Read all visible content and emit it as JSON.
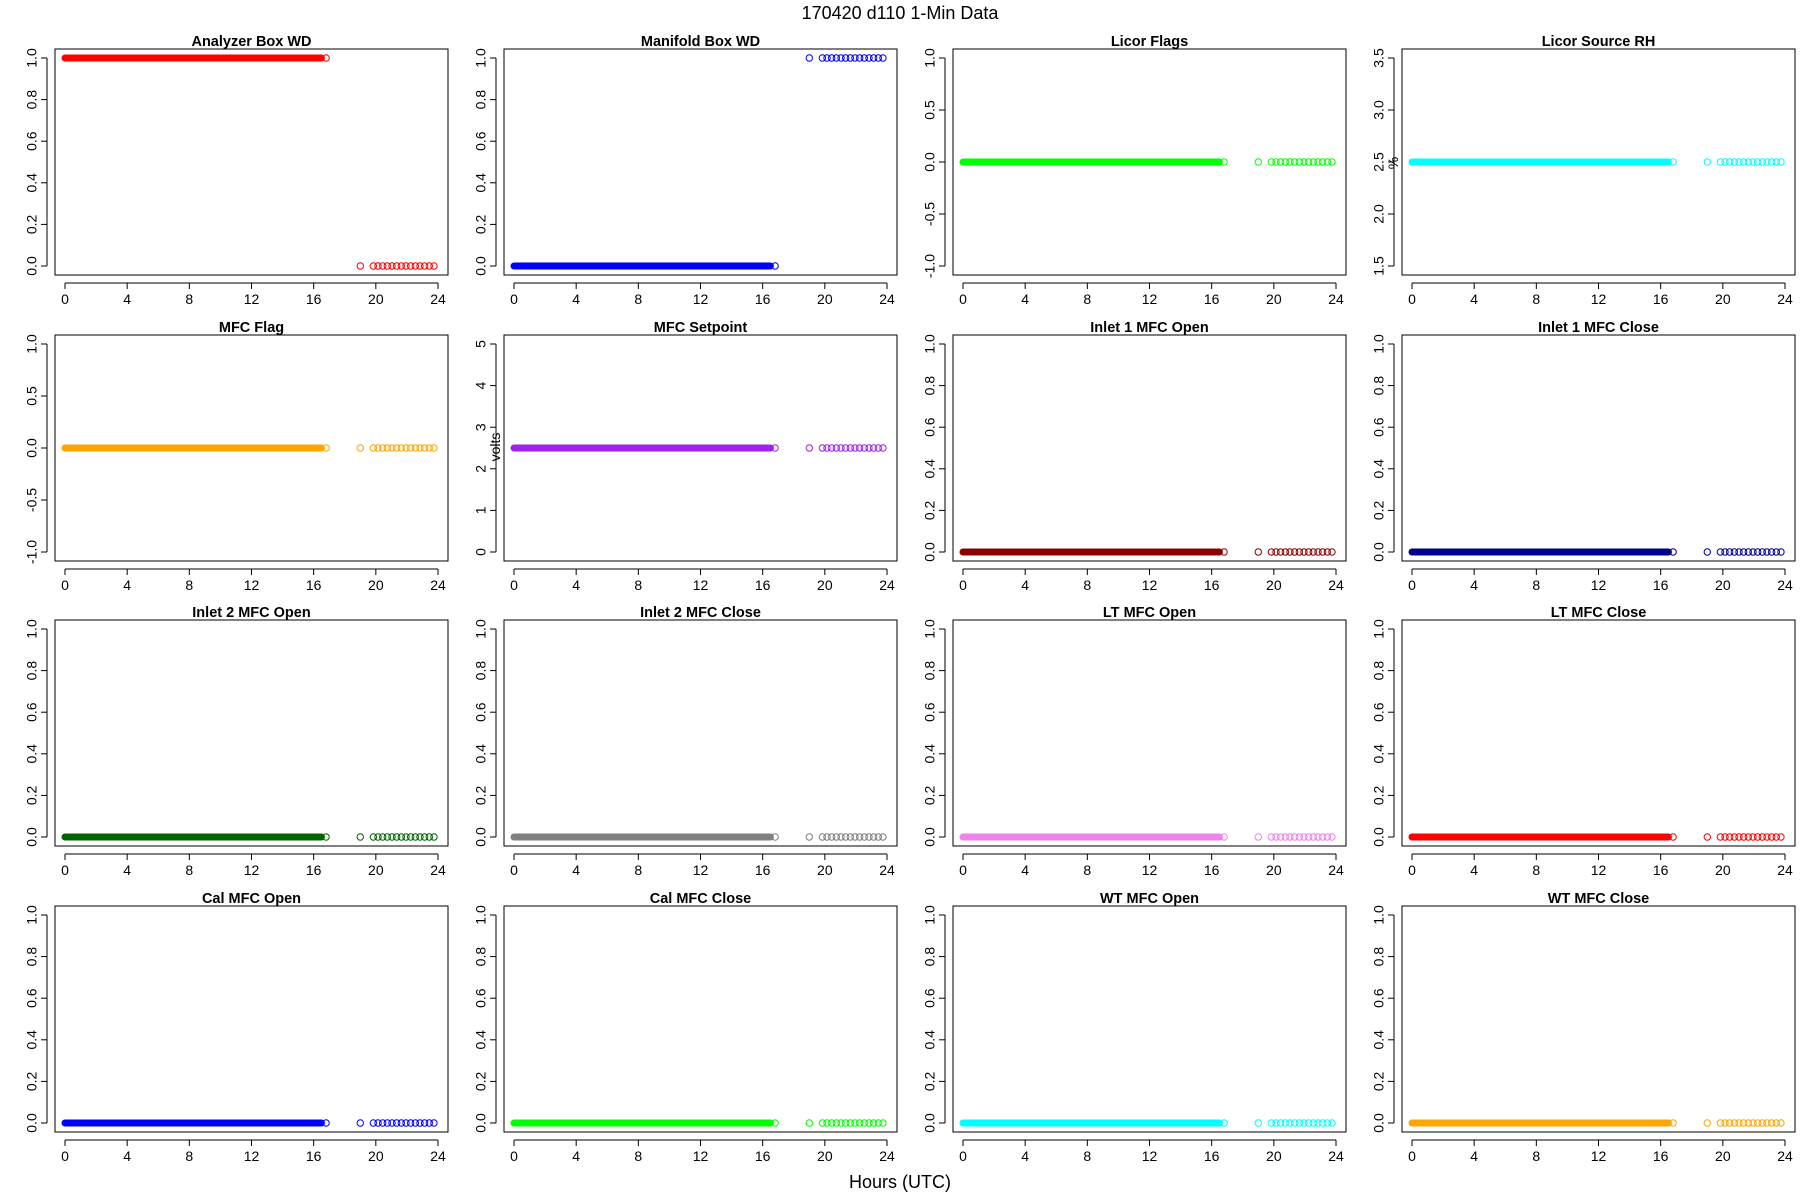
{
  "figure": {
    "title": "170420   d110   1-Min Data",
    "xlabel": "Hours (UTC)"
  },
  "chart_data": [
    {
      "type": "scatter",
      "title": "Analyzer Box WD",
      "ylabel": "",
      "color": "#ff0000",
      "xlim": [
        0,
        24
      ],
      "ylim": [
        0,
        1
      ],
      "xticks": [
        0,
        4,
        8,
        12,
        16,
        20,
        24
      ],
      "yticks": [
        "0.0",
        "0.2",
        "0.4",
        "0.6",
        "0.8",
        "1.0"
      ],
      "yticks_values": [
        0,
        0.2,
        0.4,
        0.6,
        0.8,
        1.0
      ],
      "segments": [
        {
          "x_start": 0,
          "x_end": 16.5,
          "y": 1.0
        },
        {
          "x_start": 19.0,
          "x_end": 24.0,
          "y": 0.0
        }
      ],
      "last_point": {
        "x": 16.8,
        "y": 1.0
      }
    },
    {
      "type": "scatter",
      "title": "Manifold Box WD",
      "ylabel": "",
      "color": "#0000ff",
      "xlim": [
        0,
        24
      ],
      "ylim": [
        0,
        1
      ],
      "xticks": [
        0,
        4,
        8,
        12,
        16,
        20,
        24
      ],
      "yticks": [
        "0.0",
        "0.2",
        "0.4",
        "0.6",
        "0.8",
        "1.0"
      ],
      "yticks_values": [
        0,
        0.2,
        0.4,
        0.6,
        0.8,
        1.0
      ],
      "segments": [
        {
          "x_start": 0,
          "x_end": 16.5,
          "y": 0.0
        },
        {
          "x_start": 19.0,
          "x_end": 24.0,
          "y": 1.0
        }
      ],
      "last_point": {
        "x": 16.8,
        "y": 0.0
      }
    },
    {
      "type": "scatter",
      "title": "Licor Flags",
      "ylabel": "",
      "color": "#00ff00",
      "xlim": [
        0,
        24
      ],
      "ylim": [
        -1,
        1
      ],
      "xticks": [
        0,
        4,
        8,
        12,
        16,
        20,
        24
      ],
      "yticks": [
        "-1.0",
        "-0.5",
        "0.0",
        "0.5",
        "1.0"
      ],
      "yticks_values": [
        -1,
        -0.5,
        0,
        0.5,
        1.0
      ],
      "segments": [
        {
          "x_start": 0,
          "x_end": 16.5,
          "y": 0.0
        },
        {
          "x_start": 19.0,
          "x_end": 24.0,
          "y": 0.0
        }
      ],
      "last_point": {
        "x": 16.8,
        "y": 0.0
      }
    },
    {
      "type": "scatter",
      "title": "Licor Source RH",
      "ylabel": "%",
      "color": "#00ffff",
      "xlim": [
        0,
        24
      ],
      "ylim": [
        1.5,
        3.5
      ],
      "xticks": [
        0,
        4,
        8,
        12,
        16,
        20,
        24
      ],
      "yticks": [
        "1.5",
        "2.0",
        "2.5",
        "3.0",
        "3.5"
      ],
      "yticks_values": [
        1.5,
        2.0,
        2.5,
        3.0,
        3.5
      ],
      "segments": [
        {
          "x_start": 0,
          "x_end": 16.5,
          "y": 2.5
        },
        {
          "x_start": 19.0,
          "x_end": 24.0,
          "y": 2.5
        }
      ],
      "last_point": {
        "x": 16.8,
        "y": 2.5
      }
    },
    {
      "type": "scatter",
      "title": "MFC Flag",
      "ylabel": "",
      "color": "#ffa500",
      "xlim": [
        0,
        24
      ],
      "ylim": [
        -1,
        1
      ],
      "xticks": [
        0,
        4,
        8,
        12,
        16,
        20,
        24
      ],
      "yticks": [
        "-1.0",
        "-0.5",
        "0.0",
        "0.5",
        "1.0"
      ],
      "yticks_values": [
        -1,
        -0.5,
        0,
        0.5,
        1.0
      ],
      "segments": [
        {
          "x_start": 0,
          "x_end": 16.5,
          "y": 0.0
        },
        {
          "x_start": 19.0,
          "x_end": 24.0,
          "y": 0.0
        }
      ],
      "last_point": {
        "x": 16.8,
        "y": 0.0
      }
    },
    {
      "type": "scatter",
      "title": "MFC Setpoint",
      "ylabel": "volts",
      "color": "#a020f0",
      "xlim": [
        0,
        24
      ],
      "ylim": [
        0,
        5
      ],
      "xticks": [
        0,
        4,
        8,
        12,
        16,
        20,
        24
      ],
      "yticks": [
        "0",
        "1",
        "2",
        "3",
        "4",
        "5"
      ],
      "yticks_values": [
        0,
        1,
        2,
        3,
        4,
        5
      ],
      "segments": [
        {
          "x_start": 0,
          "x_end": 16.5,
          "y": 2.5
        },
        {
          "x_start": 19.0,
          "x_end": 24.0,
          "y": 2.5
        }
      ],
      "last_point": {
        "x": 16.8,
        "y": 2.5
      }
    },
    {
      "type": "scatter",
      "title": "Inlet 1 MFC Open",
      "ylabel": "",
      "color": "#8b0000",
      "xlim": [
        0,
        24
      ],
      "ylim": [
        0,
        1
      ],
      "xticks": [
        0,
        4,
        8,
        12,
        16,
        20,
        24
      ],
      "yticks": [
        "0.0",
        "0.2",
        "0.4",
        "0.6",
        "0.8",
        "1.0"
      ],
      "yticks_values": [
        0,
        0.2,
        0.4,
        0.6,
        0.8,
        1.0
      ],
      "segments": [
        {
          "x_start": 0,
          "x_end": 16.5,
          "y": 0.0
        },
        {
          "x_start": 19.0,
          "x_end": 24.0,
          "y": 0.0
        }
      ],
      "last_point": {
        "x": 16.8,
        "y": 0.0
      }
    },
    {
      "type": "scatter",
      "title": "Inlet 1 MFC Close",
      "ylabel": "",
      "color": "#00008b",
      "xlim": [
        0,
        24
      ],
      "ylim": [
        0,
        1
      ],
      "xticks": [
        0,
        4,
        8,
        12,
        16,
        20,
        24
      ],
      "yticks": [
        "0.0",
        "0.2",
        "0.4",
        "0.6",
        "0.8",
        "1.0"
      ],
      "yticks_values": [
        0,
        0.2,
        0.4,
        0.6,
        0.8,
        1.0
      ],
      "segments": [
        {
          "x_start": 0,
          "x_end": 16.5,
          "y": 0.0
        },
        {
          "x_start": 19.0,
          "x_end": 24.0,
          "y": 0.0
        }
      ],
      "last_point": {
        "x": 16.8,
        "y": 0.0
      }
    },
    {
      "type": "scatter",
      "title": "Inlet 2 MFC Open",
      "ylabel": "",
      "color": "#006400",
      "xlim": [
        0,
        24
      ],
      "ylim": [
        0,
        1
      ],
      "xticks": [
        0,
        4,
        8,
        12,
        16,
        20,
        24
      ],
      "yticks": [
        "0.0",
        "0.2",
        "0.4",
        "0.6",
        "0.8",
        "1.0"
      ],
      "yticks_values": [
        0,
        0.2,
        0.4,
        0.6,
        0.8,
        1.0
      ],
      "segments": [
        {
          "x_start": 0,
          "x_end": 16.5,
          "y": 0.0
        },
        {
          "x_start": 19.0,
          "x_end": 24.0,
          "y": 0.0
        }
      ],
      "last_point": {
        "x": 16.8,
        "y": 0.0
      }
    },
    {
      "type": "scatter",
      "title": "Inlet 2 MFC Close",
      "ylabel": "",
      "color": "#808080",
      "xlim": [
        0,
        24
      ],
      "ylim": [
        0,
        1
      ],
      "xticks": [
        0,
        4,
        8,
        12,
        16,
        20,
        24
      ],
      "yticks": [
        "0.0",
        "0.2",
        "0.4",
        "0.6",
        "0.8",
        "1.0"
      ],
      "yticks_values": [
        0,
        0.2,
        0.4,
        0.6,
        0.8,
        1.0
      ],
      "segments": [
        {
          "x_start": 0,
          "x_end": 16.5,
          "y": 0.0
        },
        {
          "x_start": 19.0,
          "x_end": 24.0,
          "y": 0.0
        }
      ],
      "last_point": {
        "x": 16.8,
        "y": 0.0
      }
    },
    {
      "type": "scatter",
      "title": "LT MFC Open",
      "ylabel": "",
      "color": "#ee82ee",
      "xlim": [
        0,
        24
      ],
      "ylim": [
        0,
        1
      ],
      "xticks": [
        0,
        4,
        8,
        12,
        16,
        20,
        24
      ],
      "yticks": [
        "0.0",
        "0.2",
        "0.4",
        "0.6",
        "0.8",
        "1.0"
      ],
      "yticks_values": [
        0,
        0.2,
        0.4,
        0.6,
        0.8,
        1.0
      ],
      "segments": [
        {
          "x_start": 0,
          "x_end": 16.5,
          "y": 0.0
        },
        {
          "x_start": 19.0,
          "x_end": 24.0,
          "y": 0.0
        }
      ],
      "last_point": {
        "x": 16.8,
        "y": 0.0
      }
    },
    {
      "type": "scatter",
      "title": "LT MFC Close",
      "ylabel": "",
      "color": "#ff0000",
      "xlim": [
        0,
        24
      ],
      "ylim": [
        0,
        1
      ],
      "xticks": [
        0,
        4,
        8,
        12,
        16,
        20,
        24
      ],
      "yticks": [
        "0.0",
        "0.2",
        "0.4",
        "0.6",
        "0.8",
        "1.0"
      ],
      "yticks_values": [
        0,
        0.2,
        0.4,
        0.6,
        0.8,
        1.0
      ],
      "segments": [
        {
          "x_start": 0,
          "x_end": 16.5,
          "y": 0.0
        },
        {
          "x_start": 19.0,
          "x_end": 24.0,
          "y": 0.0
        }
      ],
      "last_point": {
        "x": 16.8,
        "y": 0.0
      }
    },
    {
      "type": "scatter",
      "title": "Cal MFC Open",
      "ylabel": "",
      "color": "#0000ff",
      "xlim": [
        0,
        24
      ],
      "ylim": [
        0,
        1
      ],
      "xticks": [
        0,
        4,
        8,
        12,
        16,
        20,
        24
      ],
      "yticks": [
        "0.0",
        "0.2",
        "0.4",
        "0.6",
        "0.8",
        "1.0"
      ],
      "yticks_values": [
        0,
        0.2,
        0.4,
        0.6,
        0.8,
        1.0
      ],
      "segments": [
        {
          "x_start": 0,
          "x_end": 16.5,
          "y": 0.0
        },
        {
          "x_start": 19.0,
          "x_end": 24.0,
          "y": 0.0
        }
      ],
      "last_point": {
        "x": 16.8,
        "y": 0.0
      }
    },
    {
      "type": "scatter",
      "title": "Cal MFC Close",
      "ylabel": "",
      "color": "#00ff00",
      "xlim": [
        0,
        24
      ],
      "ylim": [
        0,
        1
      ],
      "xticks": [
        0,
        4,
        8,
        12,
        16,
        20,
        24
      ],
      "yticks": [
        "0.0",
        "0.2",
        "0.4",
        "0.6",
        "0.8",
        "1.0"
      ],
      "yticks_values": [
        0,
        0.2,
        0.4,
        0.6,
        0.8,
        1.0
      ],
      "segments": [
        {
          "x_start": 0,
          "x_end": 16.5,
          "y": 0.0
        },
        {
          "x_start": 19.0,
          "x_end": 24.0,
          "y": 0.0
        }
      ],
      "last_point": {
        "x": 16.8,
        "y": 0.0
      }
    },
    {
      "type": "scatter",
      "title": "WT MFC Open",
      "ylabel": "",
      "color": "#00ffff",
      "xlim": [
        0,
        24
      ],
      "ylim": [
        0,
        1
      ],
      "xticks": [
        0,
        4,
        8,
        12,
        16,
        20,
        24
      ],
      "yticks": [
        "0.0",
        "0.2",
        "0.4",
        "0.6",
        "0.8",
        "1.0"
      ],
      "yticks_values": [
        0,
        0.2,
        0.4,
        0.6,
        0.8,
        1.0
      ],
      "segments": [
        {
          "x_start": 0,
          "x_end": 16.5,
          "y": 0.0
        },
        {
          "x_start": 19.0,
          "x_end": 24.0,
          "y": 0.0
        }
      ],
      "last_point": {
        "x": 16.8,
        "y": 0.0
      }
    },
    {
      "type": "scatter",
      "title": "WT MFC Close",
      "ylabel": "",
      "color": "#ffa500",
      "xlim": [
        0,
        24
      ],
      "ylim": [
        0,
        1
      ],
      "xticks": [
        0,
        4,
        8,
        12,
        16,
        20,
        24
      ],
      "yticks": [
        "0.0",
        "0.2",
        "0.4",
        "0.6",
        "0.8",
        "1.0"
      ],
      "yticks_values": [
        0,
        0.2,
        0.4,
        0.6,
        0.8,
        1.0
      ],
      "segments": [
        {
          "x_start": 0,
          "x_end": 16.5,
          "y": 0.0
        },
        {
          "x_start": 19.0,
          "x_end": 24.0,
          "y": 0.0
        }
      ],
      "last_point": {
        "x": 16.8,
        "y": 0.0
      }
    }
  ]
}
